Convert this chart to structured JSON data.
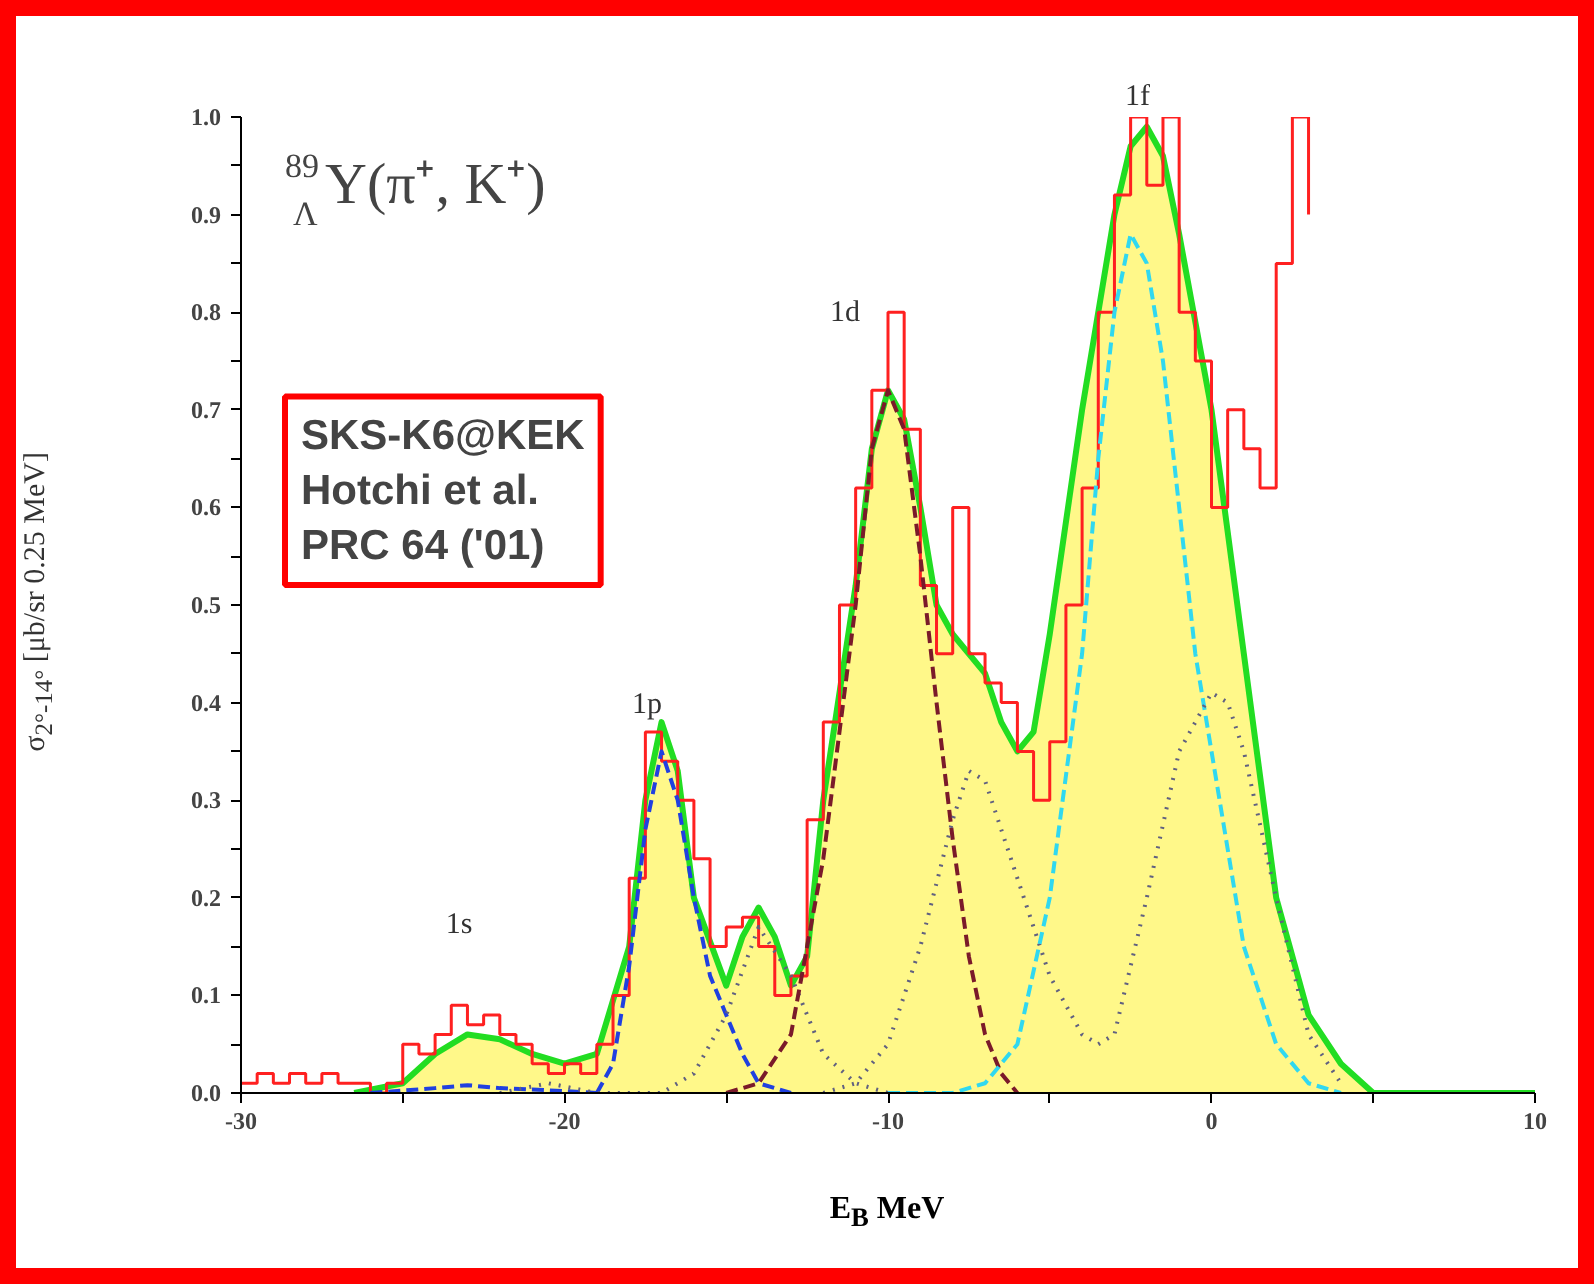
{
  "chart_data": {
    "type": "area",
    "title": "$^{89}$$_{Λ}$Y(π⁺, K⁺)",
    "xlabel": "E$_{B}$ MeV",
    "ylabel": "σ$_{2°-14°}$ [μb/sr 0.25 MeV]",
    "xlim": [
      -30,
      10
    ],
    "ylim": [
      0,
      1.0
    ],
    "xticks": [
      -30,
      {
        "value": -25,
        "label": null
      },
      -20,
      {
        "value": -15,
        "label": null
      },
      -10,
      {
        "value": -5,
        "label": null
      },
      0,
      {
        "value": 5,
        "label": null
      },
      10
    ],
    "yticks": [
      {
        "value": 0,
        "label": "0.0"
      },
      {
        "value": 0.05,
        "label": null
      },
      0.1,
      {
        "value": 0.15,
        "label": null
      },
      0.2,
      {
        "value": 0.25,
        "label": null
      },
      0.3,
      {
        "value": 0.35,
        "label": null
      },
      0.4,
      {
        "value": 0.45,
        "label": null
      },
      0.5,
      {
        "value": 0.55,
        "label": null
      },
      0.6,
      {
        "value": 0.65,
        "label": null
      },
      0.7,
      {
        "value": 0.75,
        "label": null
      },
      0.8,
      {
        "value": 0.85,
        "label": null
      },
      0.9,
      {
        "value": 0.95,
        "label": null
      },
      {
        "value": 1.0,
        "label": "1.0"
      }
    ],
    "grid": false,
    "annotations": [
      "1s",
      "1p",
      "1d",
      "1f",
      "SKS-K6@KEK\nHotchi et al.\nPRC 64 ('01)"
    ],
    "series": [
      {
        "color": "#22dd22",
        "x": [
          -26.5,
          -25,
          -24,
          -23,
          -22,
          -21,
          -20,
          -19,
          -18,
          -17.5,
          -17,
          -16.5,
          -16,
          -15,
          -14.5,
          -14,
          -13.5,
          -13,
          -12.5,
          -12,
          -11,
          -10.5,
          -10,
          -9.5,
          -9,
          -8.5,
          -8,
          -7,
          -6.5,
          -6,
          -5.5,
          -5,
          -4,
          -3,
          -2.5,
          -2,
          -1.5,
          -1,
          0,
          1,
          2,
          3,
          4,
          5
        ],
        "values": [
          0,
          0.01,
          0.04,
          0.06,
          0.055,
          0.04,
          0.03,
          0.04,
          0.15,
          0.3,
          0.38,
          0.33,
          0.2,
          0.11,
          0.16,
          0.19,
          0.16,
          0.11,
          0.14,
          0.3,
          0.52,
          0.66,
          0.72,
          0.69,
          0.6,
          0.5,
          0.47,
          0.43,
          0.38,
          0.35,
          0.37,
          0.47,
          0.7,
          0.9,
          0.97,
          0.99,
          0.96,
          0.88,
          0.7,
          0.45,
          0.2,
          0.08,
          0.03,
          0
        ]
      },
      {
        "type": "line",
        "color": "#22dd22",
        "x": [
          5,
          10
        ],
        "values": [
          0,
          0
        ]
      },
      {
        "type": "step",
        "color": "#ff2020",
        "x": [
          -30,
          -29.5,
          -29,
          -28.5,
          -28,
          -27.5,
          -27,
          -26.5,
          -26,
          -25.5,
          -25,
          -24.5,
          -24,
          -23.5,
          -23,
          -22.5,
          -22,
          -21.5,
          -21,
          -20.5,
          -20,
          -19.5,
          -19,
          -18.5,
          -18,
          -17.5,
          -17,
          -16.5,
          -16,
          -15.5,
          -15,
          -14.5,
          -14,
          -13.5,
          -13,
          -12.5,
          -12,
          -11.5,
          -11,
          -10.5,
          -10,
          -9.5,
          -9,
          -8.5,
          -8,
          -7.5,
          -7,
          -6.5,
          -6,
          -5.5,
          -5,
          -4.5,
          -4,
          -3.5,
          -3,
          -2.5,
          -2,
          -1.5,
          -1,
          -0.5,
          0,
          0.5,
          1,
          1.5,
          2,
          2.5,
          3
        ],
        "values": [
          0.01,
          0.02,
          0.01,
          0.02,
          0.01,
          0.02,
          0.01,
          0.01,
          0,
          0.01,
          0.05,
          0.04,
          0.06,
          0.09,
          0.07,
          0.08,
          0.06,
          0.05,
          0.03,
          0.02,
          0.03,
          0.02,
          0.05,
          0.1,
          0.22,
          0.37,
          0.34,
          0.3,
          0.24,
          0.15,
          0.17,
          0.18,
          0.15,
          0.1,
          0.12,
          0.28,
          0.38,
          0.5,
          0.62,
          0.72,
          0.8,
          0.68,
          0.52,
          0.45,
          0.6,
          0.45,
          0.42,
          0.4,
          0.35,
          0.3,
          0.36,
          0.5,
          0.62,
          0.8,
          0.92,
          1.0,
          0.93,
          1.0,
          0.8,
          0.75,
          0.6,
          0.7,
          0.66,
          0.62,
          0.85,
          1.0,
          0.9
        ]
      },
      {
        "type": "line",
        "color": "#2040e0",
        "line_style": "dashed",
        "x": [
          -26,
          -24,
          -23,
          -22,
          -20,
          -19
        ],
        "values": [
          0,
          0.005,
          0.008,
          0.005,
          0.002,
          0
        ]
      },
      {
        "type": "line",
        "color": "#2040e0",
        "line_style": "dashed",
        "x": [
          -19,
          -18.5,
          -18,
          -17.5,
          -17,
          -16.5,
          -16,
          -15.5,
          -15,
          -14.5,
          -14,
          -13
        ],
        "values": [
          0,
          0.03,
          0.13,
          0.27,
          0.35,
          0.3,
          0.2,
          0.12,
          0.08,
          0.04,
          0.01,
          0
        ]
      },
      {
        "type": "line",
        "color": "#606080",
        "line_style": "dotted",
        "x": [
          -22,
          -20.5,
          -19,
          -17,
          -16,
          -15,
          -14,
          -13,
          -12,
          -11,
          -10
        ],
        "values": [
          0,
          0.01,
          0,
          0,
          0.02,
          0.08,
          0.17,
          0.12,
          0.04,
          0.01,
          0
        ]
      },
      {
        "type": "line",
        "color": "#7a1a2a",
        "line_style": "dashed",
        "x": [
          -15,
          -14,
          -13,
          -12,
          -11,
          -10.5,
          -10,
          -9.5,
          -9,
          -8.5,
          -8,
          -7.5,
          -7,
          -6.5,
          -6
        ],
        "values": [
          0,
          0.01,
          0.06,
          0.24,
          0.5,
          0.66,
          0.72,
          0.68,
          0.55,
          0.4,
          0.26,
          0.14,
          0.06,
          0.02,
          0
        ]
      },
      {
        "type": "line",
        "color": "#606080",
        "line_style": "dotted",
        "x": [
          -12,
          -11,
          -10,
          -9,
          -8,
          -7.5,
          -7,
          -6,
          -5,
          -4,
          -3.5
        ],
        "values": [
          0,
          0.01,
          0.05,
          0.15,
          0.28,
          0.33,
          0.32,
          0.22,
          0.12,
          0.06,
          0.05
        ]
      },
      {
        "type": "line",
        "color": "#30d8f0",
        "line_style": "dashed",
        "x": [
          -10,
          -8,
          -7,
          -6,
          -5,
          -4,
          -3.5,
          -3,
          -2.5,
          -2,
          -1.5,
          -1,
          -0.5,
          0,
          1,
          2,
          3,
          4
        ],
        "values": [
          0,
          0,
          0.01,
          0.05,
          0.2,
          0.45,
          0.65,
          0.8,
          0.88,
          0.85,
          0.75,
          0.6,
          0.45,
          0.35,
          0.15,
          0.05,
          0.01,
          0
        ]
      },
      {
        "type": "line",
        "color": "#606080",
        "line_style": "dotted",
        "x": [
          -3.5,
          -3,
          -2,
          -1,
          0,
          0.5,
          1,
          2,
          3,
          4
        ],
        "values": [
          0.05,
          0.06,
          0.2,
          0.35,
          0.41,
          0.4,
          0.35,
          0.2,
          0.06,
          0.01
        ]
      }
    ]
  }
}
